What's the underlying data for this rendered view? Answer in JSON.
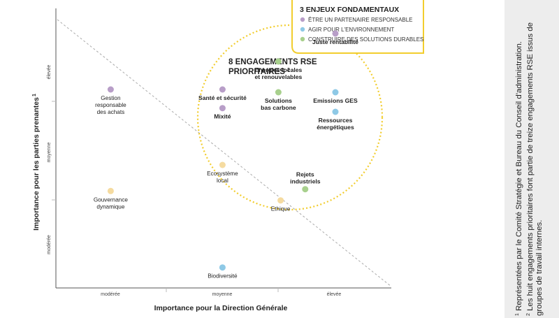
{
  "chart_data": {
    "type": "scatter",
    "xlabel": "Importance pour la Direction Générale",
    "ylabel": "Importance pour les parties prenantes",
    "ylabel_note": "1",
    "x_ticks": [
      "modérée",
      "moyenne",
      "élevée"
    ],
    "y_ticks": [
      "modérée",
      "moyenne",
      "élevée"
    ],
    "xlim": [
      0,
      3
    ],
    "ylim": [
      0,
      3
    ],
    "diagonal_reference": true,
    "legend": {
      "title": "3 ENJEUX FONDAMENTAUX",
      "position": "top-right",
      "items": [
        {
          "label": "ÊTRE UN PARTENAIRE RESPONSABLE",
          "color": "#b89ec8"
        },
        {
          "label": "AGIR POUR L'ENVIRONNEMENT",
          "color": "#8ec9e6"
        },
        {
          "label": "CONSTRUIRE DES SOLUTIONS DURABLES",
          "color": "#a8d08d"
        }
      ]
    },
    "highlight": {
      "lines": [
        "8 ENGAGEMENTS RSE",
        "PRIORITAIRES"
      ],
      "note": "2",
      "color": "#f2cd2e"
    },
    "points": [
      {
        "label": [
          "Juste rentabilité"
        ],
        "x": 2.5,
        "y": 2.73,
        "color": "#b89ec8",
        "bold": true,
        "labelPos": "below"
      },
      {
        "label": [
          "Energies locales",
          "et renouvelables"
        ],
        "x": 1.99,
        "y": 2.43,
        "color": "#a8d08d",
        "bold": true,
        "labelPos": "below"
      },
      {
        "label": [
          "Santé et sécurité"
        ],
        "x": 1.49,
        "y": 2.13,
        "color": "#b89ec8",
        "bold": true,
        "labelPos": "below"
      },
      {
        "label": [
          "Solutions",
          "bas carbone"
        ],
        "x": 1.99,
        "y": 2.1,
        "color": "#a8d08d",
        "bold": true,
        "labelPos": "below"
      },
      {
        "label": [
          "Emissions GES"
        ],
        "x": 2.5,
        "y": 2.1,
        "color": "#8ec9e6",
        "bold": true,
        "labelPos": "below"
      },
      {
        "label": [
          "Mixité"
        ],
        "x": 1.49,
        "y": 1.93,
        "color": "#b89ec8",
        "bold": true,
        "labelPos": "below"
      },
      {
        "label": [
          "Ressources",
          "énergétiques"
        ],
        "x": 2.5,
        "y": 1.89,
        "color": "#8ec9e6",
        "bold": true,
        "labelPos": "below"
      },
      {
        "label": [
          "Rejets",
          "industriels"
        ],
        "x": 2.23,
        "y": 1.06,
        "color": "#a8d08d",
        "bold": true,
        "labelPos": "above"
      },
      {
        "label": [
          "Gestion",
          "responsable",
          "des achats"
        ],
        "x": 0.49,
        "y": 2.13,
        "color": "#b89ec8",
        "bold": false,
        "labelPos": "below"
      },
      {
        "label": [
          "Ecosystème",
          "local"
        ],
        "x": 1.49,
        "y": 1.32,
        "color": "#f5dba0",
        "bold": false,
        "labelPos": "below"
      },
      {
        "label": [
          "Gouvernance",
          "dynamique"
        ],
        "x": 0.49,
        "y": 1.04,
        "color": "#f5dba0",
        "bold": false,
        "labelPos": "below"
      },
      {
        "label": [
          "Ethique"
        ],
        "x": 2.01,
        "y": 0.94,
        "color": "#f5dba0",
        "bold": false,
        "labelPos": "below"
      },
      {
        "label": [
          "Biodiversité"
        ],
        "x": 1.49,
        "y": 0.22,
        "color": "#8ec9e6",
        "bold": false,
        "labelPos": "below"
      }
    ]
  },
  "notes": [
    {
      "mark": "1",
      "text": "Représentées par le Comité Stratégie et Bureau du Conseil d'administration."
    },
    {
      "mark": "2",
      "text": "Les huit engagements prioritaires font partie de treize engagements RSE issus de groupes de travail internes."
    }
  ]
}
